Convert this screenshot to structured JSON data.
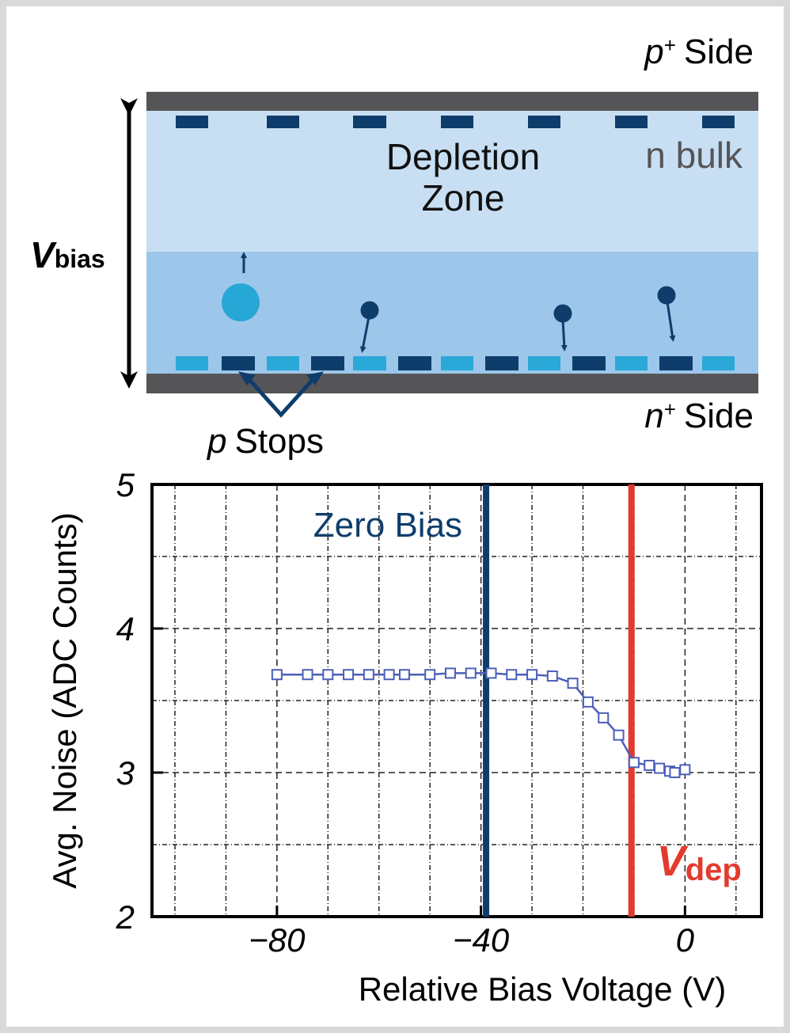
{
  "diagram": {
    "top_side": {
      "letter": "p",
      "sup": "+",
      "text": "Side"
    },
    "bulk": "n bulk",
    "zone": [
      "Depletion",
      "Zone"
    ],
    "bias": {
      "letter": "V",
      "sub": "bias"
    },
    "stops": {
      "letter": "p",
      "text": "Stops"
    },
    "bottom_side": {
      "letter": "n",
      "sup": "+",
      "text": "Side"
    }
  },
  "chart_data": {
    "type": "line",
    "xlabel": "Relative Bias Voltage (V)",
    "ylabel": "Avg. Noise (ADC Counts)",
    "xlim": [
      -104.5,
      15
    ],
    "ylim": [
      2,
      5
    ],
    "xticks": [
      -80,
      -40,
      0
    ],
    "yticks": [
      2,
      3,
      4,
      5
    ],
    "minor_xticks": [
      -100,
      -90,
      -70,
      -60,
      -50,
      -30,
      -20,
      -10,
      10
    ],
    "minor_yticks": [
      2.5,
      3.5,
      4.5
    ],
    "grid": true,
    "series": [
      {
        "color": "#4b5fb8",
        "x": [
          -80,
          -74,
          -70,
          -66,
          -62,
          -58,
          -55,
          -50,
          -46,
          -42,
          -38,
          -34,
          -30,
          -26,
          -22,
          -19,
          -16,
          -13,
          -10,
          -7,
          -5,
          -3,
          -2,
          0
        ],
        "values": [
          3.68,
          3.68,
          3.68,
          3.68,
          3.68,
          3.68,
          3.68,
          3.68,
          3.69,
          3.69,
          3.69,
          3.68,
          3.68,
          3.67,
          3.62,
          3.49,
          3.38,
          3.26,
          3.07,
          3.05,
          3.03,
          3.01,
          3.0,
          3.02
        ]
      }
    ],
    "vlines": [
      {
        "x": -39,
        "color": "#0f3d6b",
        "label": "Zero Bias"
      },
      {
        "x": -10.5,
        "color": "#e23b2e",
        "label": {
          "letter": "V",
          "sub": "dep"
        }
      }
    ]
  }
}
